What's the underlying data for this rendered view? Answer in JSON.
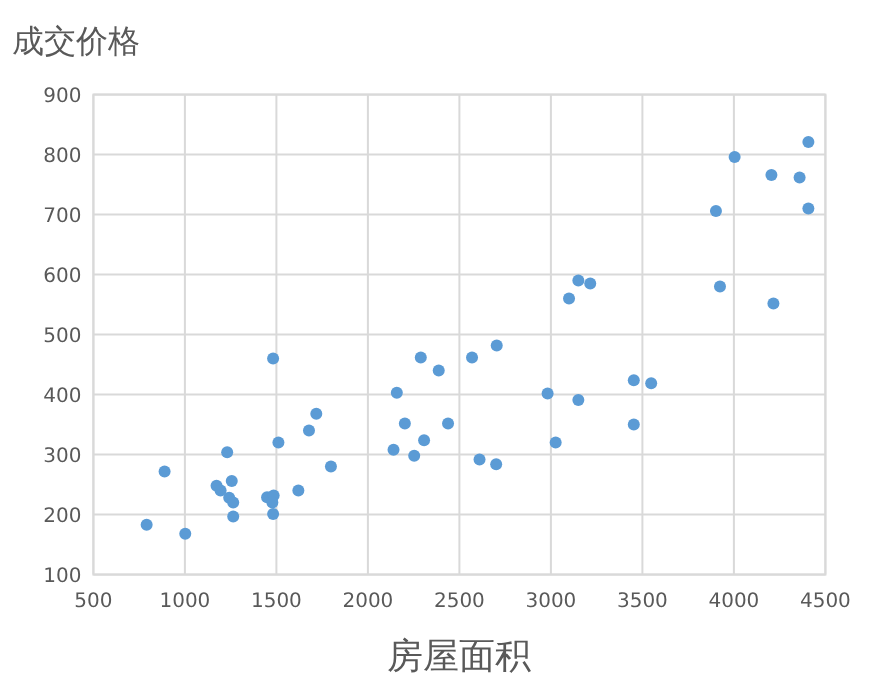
{
  "chart_data": {
    "type": "scatter",
    "title": "成交价格",
    "xlabel": "房屋面积",
    "x": [
      791,
      889,
      1002,
      1173,
      1195,
      1231,
      1256,
      1242,
      1264,
      1264,
      1449,
      1485,
      1478,
      1482,
      1482,
      1511,
      1620,
      1678,
      1718,
      1798,
      2140,
      2158,
      2202,
      2253,
      2289,
      2307,
      2387,
      2438,
      2569,
      2704,
      2610,
      2701,
      2982,
      3150,
      3026,
      3099,
      3150,
      3215,
      3453,
      3548,
      3453,
      3902,
      3924,
      4004,
      4205,
      4216,
      4359,
      4407,
      4407
    ],
    "values": [
      183,
      272,
      168,
      248,
      240,
      304,
      256,
      228,
      220,
      197,
      229,
      232,
      220,
      201,
      460,
      320,
      240,
      340,
      368,
      280,
      308,
      403,
      352,
      298,
      462,
      324,
      440,
      352,
      462,
      482,
      292,
      284,
      402,
      391,
      320,
      560,
      590,
      585,
      424,
      419,
      350,
      706,
      580,
      796,
      766,
      552,
      762,
      821,
      710
    ],
    "color": "#5b9bd5",
    "marker": "circle",
    "grid": true,
    "xlim": [
      500,
      4500
    ],
    "xticks": [
      500,
      1000,
      1500,
      2000,
      2500,
      3000,
      3500,
      4000,
      4500
    ],
    "ylim": [
      100,
      900
    ],
    "yticks": [
      100,
      200,
      300,
      400,
      500,
      600,
      700,
      800,
      900
    ]
  }
}
